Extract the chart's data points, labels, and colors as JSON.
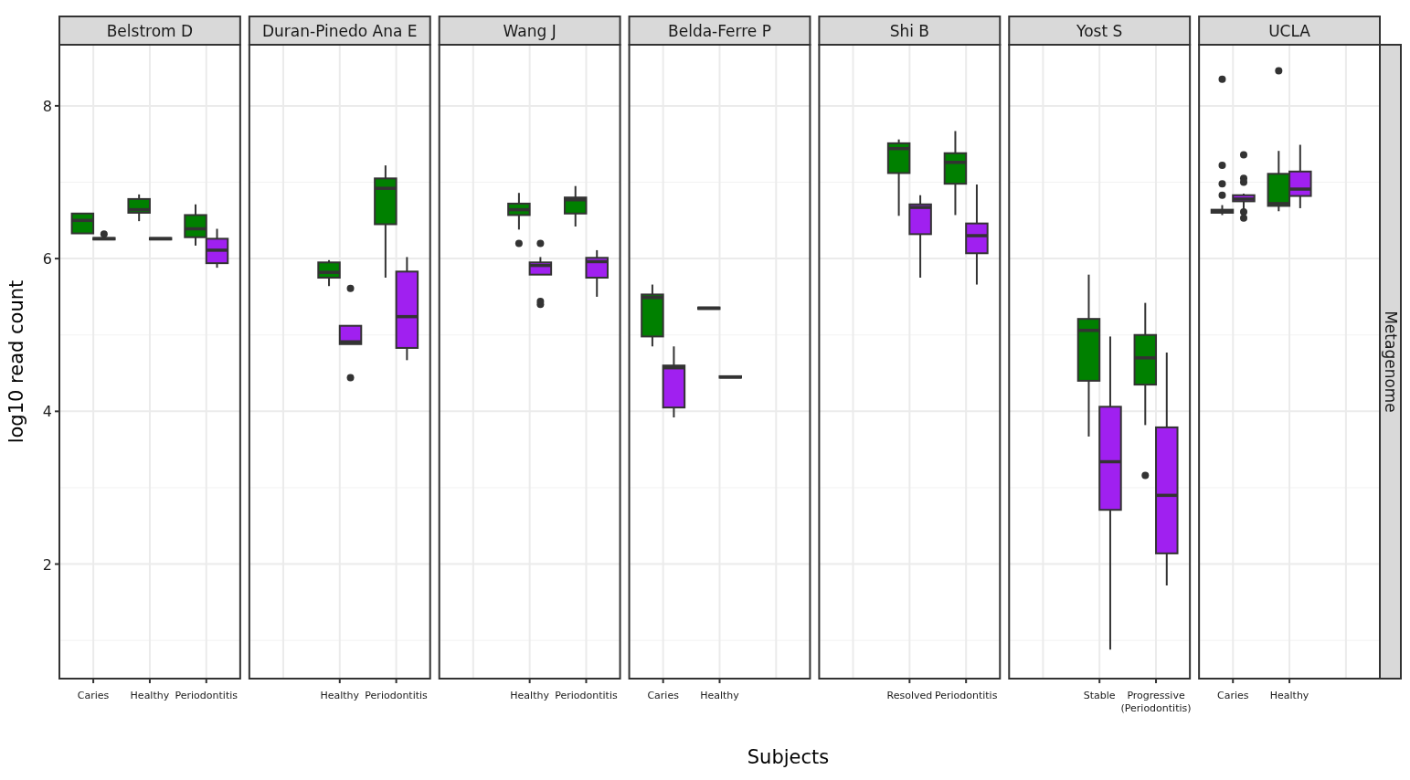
{
  "chart_data": [
    {
      "type": "box",
      "title": "Belstrom D",
      "ylabel": "log10 read count",
      "categories": [
        "Caries",
        "Healthy",
        "Periodontitis"
      ],
      "ylim": [
        0.5,
        8.8
      ],
      "yticks": [
        2,
        4,
        6,
        8
      ],
      "grid": true,
      "series": [
        {
          "color": "#008000",
          "boxes": [
            {
              "low": 6.33,
              "q1": 6.33,
              "median": 6.5,
              "q3": 6.59,
              "high": 6.59
            },
            {
              "low": 6.49,
              "q1": 6.6,
              "median": 6.64,
              "q3": 6.78,
              "high": 6.84
            },
            {
              "low": 6.17,
              "q1": 6.28,
              "median": 6.39,
              "q3": 6.57,
              "high": 6.71
            }
          ]
        },
        {
          "color": "#a020f0",
          "boxes": [
            {
              "low": 6.25,
              "q1": 6.25,
              "median": 6.26,
              "q3": 6.27,
              "high": 6.27,
              "outliers": [
                6.32
              ]
            },
            {
              "low": 6.25,
              "q1": 6.25,
              "median": 6.26,
              "q3": 6.27,
              "high": 6.27
            },
            {
              "low": 5.88,
              "q1": 5.94,
              "median": 6.11,
              "q3": 6.26,
              "high": 6.39
            }
          ]
        }
      ]
    },
    {
      "type": "box",
      "title": "Duran-Pinedo Ana E",
      "categories": [
        null,
        "Healthy",
        "Periodontitis"
      ],
      "ylim": [
        0.5,
        8.8
      ],
      "yticks": [
        2,
        4,
        6,
        8
      ],
      "grid": true,
      "tick_labels": "x",
      "series": [
        {
          "color": "#008000",
          "boxes": [
            null,
            {
              "low": 5.64,
              "q1": 5.75,
              "median": 5.82,
              "q3": 5.95,
              "high": 5.98
            },
            {
              "low": 5.75,
              "q1": 6.45,
              "median": 6.92,
              "q3": 7.05,
              "high": 7.22
            }
          ]
        },
        {
          "color": "#a020f0",
          "boxes": [
            null,
            {
              "low": 4.88,
              "q1": 4.88,
              "median": 4.91,
              "q3": 5.12,
              "high": 5.12,
              "outliers": [
                5.61,
                4.44
              ]
            },
            {
              "low": 4.67,
              "q1": 4.83,
              "median": 5.24,
              "q3": 5.83,
              "high": 6.02
            }
          ]
        }
      ]
    },
    {
      "type": "box",
      "title": "Wang J",
      "categories": [
        null,
        "Healthy",
        "Periodontitis"
      ],
      "ylim": [
        0.5,
        8.8
      ],
      "yticks": [
        2,
        4,
        6,
        8
      ],
      "grid": true,
      "tick_labels": "x",
      "series": [
        {
          "color": "#008000",
          "boxes": [
            null,
            {
              "low": 6.38,
              "q1": 6.57,
              "median": 6.64,
              "q3": 6.72,
              "high": 6.86,
              "outliers": [
                6.2
              ]
            },
            {
              "low": 6.42,
              "q1": 6.59,
              "median": 6.77,
              "q3": 6.8,
              "high": 6.95
            }
          ]
        },
        {
          "color": "#a020f0",
          "boxes": [
            null,
            {
              "low": 5.79,
              "q1": 5.79,
              "median": 5.91,
              "q3": 5.95,
              "high": 6.02,
              "outliers": [
                6.2,
                5.44,
                5.4
              ]
            },
            {
              "low": 5.5,
              "q1": 5.75,
              "median": 5.96,
              "q3": 6.01,
              "high": 6.11
            }
          ]
        }
      ]
    },
    {
      "type": "box",
      "title": "Belda-Ferre P",
      "xlabel": "Subjects",
      "categories": [
        "Caries",
        "Healthy",
        null
      ],
      "ylim": [
        0.5,
        8.8
      ],
      "yticks": [
        2,
        4,
        6,
        8
      ],
      "grid": true,
      "tick_labels": "x",
      "series": [
        {
          "color": "#008000",
          "boxes": [
            {
              "low": 4.85,
              "q1": 4.98,
              "median": 5.49,
              "q3": 5.53,
              "high": 5.66
            },
            {
              "low": 5.34,
              "q1": 5.34,
              "median": 5.35,
              "q3": 5.36,
              "high": 5.36
            },
            null
          ]
        },
        {
          "color": "#a020f0",
          "boxes": [
            {
              "low": 3.92,
              "q1": 4.05,
              "median": 4.57,
              "q3": 4.6,
              "high": 4.85
            },
            {
              "low": 4.44,
              "q1": 4.44,
              "median": 4.45,
              "q3": 4.46,
              "high": 4.46
            },
            null
          ]
        }
      ]
    },
    {
      "type": "box",
      "title": "Shi B",
      "categories": [
        null,
        "Resolved",
        "Periodontitis"
      ],
      "ylim": [
        0.5,
        8.8
      ],
      "yticks": [
        2,
        4,
        6,
        8
      ],
      "grid": true,
      "tick_labels": "x",
      "series": [
        {
          "color": "#008000",
          "boxes": [
            null,
            {
              "low": 6.56,
              "q1": 7.12,
              "median": 7.44,
              "q3": 7.51,
              "high": 7.56
            },
            {
              "low": 6.57,
              "q1": 6.98,
              "median": 7.26,
              "q3": 7.38,
              "high": 7.67
            }
          ]
        },
        {
          "color": "#a020f0",
          "boxes": [
            null,
            {
              "low": 5.75,
              "q1": 6.32,
              "median": 6.67,
              "q3": 6.71,
              "high": 6.83
            },
            {
              "low": 5.66,
              "q1": 6.07,
              "median": 6.3,
              "q3": 6.46,
              "high": 6.97
            }
          ]
        }
      ]
    },
    {
      "type": "box",
      "title": "Yost S",
      "categories": [
        null,
        "Stable",
        "Progressive\n(Periodontitis)"
      ],
      "ylim": [
        0.5,
        8.8
      ],
      "yticks": [
        2,
        4,
        6,
        8
      ],
      "grid": true,
      "tick_labels": "x",
      "series": [
        {
          "color": "#008000",
          "boxes": [
            null,
            {
              "low": 3.67,
              "q1": 4.4,
              "median": 5.06,
              "q3": 5.21,
              "high": 5.79
            },
            {
              "low": 3.82,
              "q1": 4.35,
              "median": 4.7,
              "q3": 5.0,
              "high": 5.42,
              "outliers": [
                3.16
              ]
            }
          ]
        },
        {
          "color": "#a020f0",
          "boxes": [
            null,
            {
              "low": 0.88,
              "q1": 2.71,
              "median": 3.34,
              "q3": 4.06,
              "high": 4.98
            },
            {
              "low": 1.72,
              "q1": 2.14,
              "median": 2.9,
              "q3": 3.79,
              "high": 4.77
            }
          ]
        }
      ]
    },
    {
      "type": "box",
      "title": "UCLA",
      "categories": [
        "Caries",
        "Healthy",
        null
      ],
      "ylim": [
        0.5,
        8.8
      ],
      "yticks": [
        2,
        4,
        6,
        8
      ],
      "grid": true,
      "tick_labels": "x",
      "annotations": [
        "Metagenome"
      ],
      "series": [
        {
          "color": "#008000",
          "boxes": [
            {
              "low": 6.57,
              "q1": 6.6,
              "median": 6.62,
              "q3": 6.64,
              "high": 6.7,
              "outliers": [
                8.35,
                7.22,
                6.98,
                6.83
              ]
            },
            {
              "low": 6.62,
              "q1": 6.69,
              "median": 6.72,
              "q3": 7.11,
              "high": 7.41,
              "outliers": [
                8.46
              ]
            },
            null
          ]
        },
        {
          "color": "#a020f0",
          "boxes": [
            {
              "low": 6.63,
              "q1": 6.75,
              "median": 6.78,
              "q3": 6.83,
              "high": 6.85,
              "outliers": [
                7.36,
                7.05,
                7.0,
                6.61,
                6.53
              ]
            },
            {
              "low": 6.66,
              "q1": 6.82,
              "median": 6.91,
              "q3": 7.14,
              "high": 7.49
            },
            null
          ]
        }
      ]
    }
  ]
}
